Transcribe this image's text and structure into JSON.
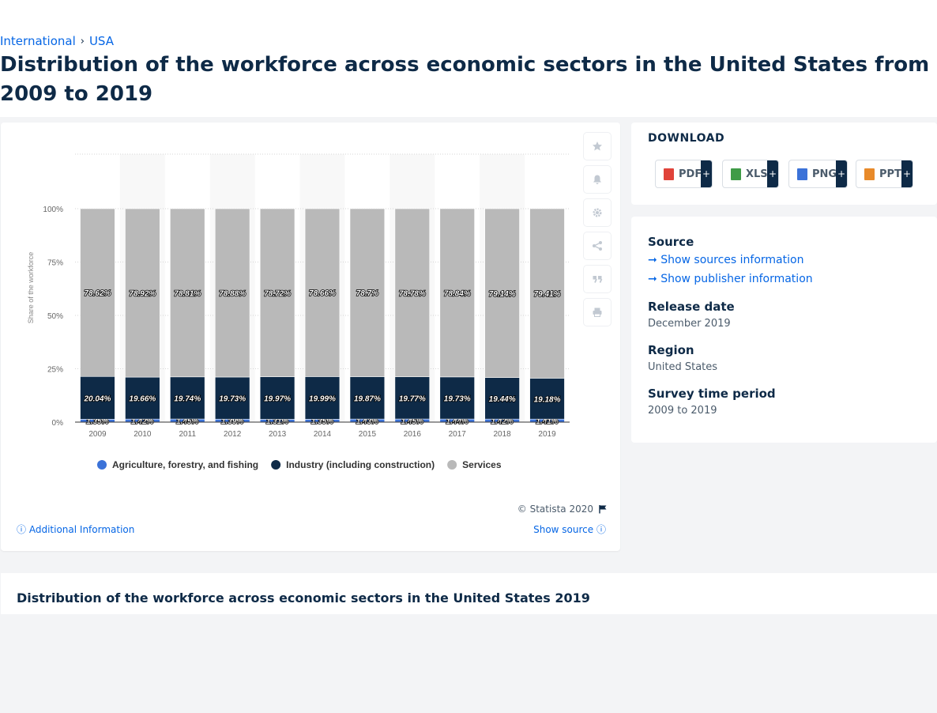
{
  "breadcrumb": {
    "items": [
      "International",
      "USA"
    ],
    "separator": "›"
  },
  "page": {
    "title": "Distribution of the workforce across economic sectors in the United States from 2009 to 2019"
  },
  "chart_data": {
    "type": "bar",
    "stacked": true,
    "categories": [
      "2009",
      "2010",
      "2011",
      "2012",
      "2013",
      "2014",
      "2015",
      "2016",
      "2017",
      "2018",
      "2019"
    ],
    "series": [
      {
        "name": "Agriculture, forestry, and fishing",
        "color": "#3b72d8",
        "values": [
          1.35,
          1.42,
          1.45,
          1.39,
          1.31,
          1.35,
          1.43,
          1.45,
          1.44,
          1.42,
          1.41
        ],
        "labels": [
          "1.35%",
          "1.42%",
          "1.45%",
          "1.39%",
          "1.31%",
          "1.35%",
          "1.43%",
          "1.45%",
          "1.44%",
          "1.42%",
          "1.41%"
        ]
      },
      {
        "name": "Industry (including construction)",
        "color": "#0e2a47",
        "values": [
          20.04,
          19.66,
          19.74,
          19.73,
          19.97,
          19.99,
          19.87,
          19.77,
          19.73,
          19.44,
          19.18
        ],
        "labels": [
          "20.04%",
          "19.66%",
          "19.74%",
          "19.73%",
          "19.97%",
          "19.99%",
          "19.87%",
          "19.77%",
          "19.73%",
          "19.44%",
          "19.18%"
        ]
      },
      {
        "name": "Services",
        "color": "#b9b9b9",
        "values": [
          78.62,
          78.92,
          78.81,
          78.88,
          78.72,
          78.66,
          78.7,
          78.78,
          78.84,
          79.14,
          79.41
        ],
        "labels": [
          "78.62%",
          "78.92%",
          "78.81%",
          "78.88%",
          "78.72%",
          "78.66%",
          "78.7%",
          "78.78%",
          "78.84%",
          "79.14%",
          "79.41%"
        ]
      }
    ],
    "title": "",
    "xlabel": "",
    "ylabel": "Share of the workforce",
    "ylim": [
      0,
      100
    ],
    "yticks": [
      0,
      25,
      50,
      75,
      100
    ],
    "ytick_labels": [
      "0%",
      "25%",
      "50%",
      "75%",
      "100%"
    ],
    "grid": true,
    "legend_position": "bottom"
  },
  "chart_card": {
    "copyright": "© Statista 2020",
    "additional_info": "Additional Information",
    "show_source": "Show source"
  },
  "toolbar": {
    "icons": [
      "star-icon",
      "bell-icon",
      "gear-icon",
      "share-icon",
      "quote-icon",
      "print-icon"
    ]
  },
  "download": {
    "title": "DOWNLOAD",
    "buttons": [
      {
        "label": "PDF",
        "color": "#e0433a"
      },
      {
        "label": "XLS",
        "color": "#3f9b47"
      },
      {
        "label": "PNG",
        "color": "#3b72d8"
      },
      {
        "label": "PPT",
        "color": "#e88a2a"
      }
    ],
    "plus": "+"
  },
  "source": {
    "heading": "Source",
    "link1": "Show sources information",
    "link2": "Show publisher information",
    "release_heading": "Release date",
    "release_value": "December 2019",
    "region_heading": "Region",
    "region_value": "United States",
    "survey_heading": "Survey time period",
    "survey_value": "2009 to 2019"
  },
  "related": {
    "title": "Distribution of the workforce across economic sectors in the United States 2019"
  }
}
